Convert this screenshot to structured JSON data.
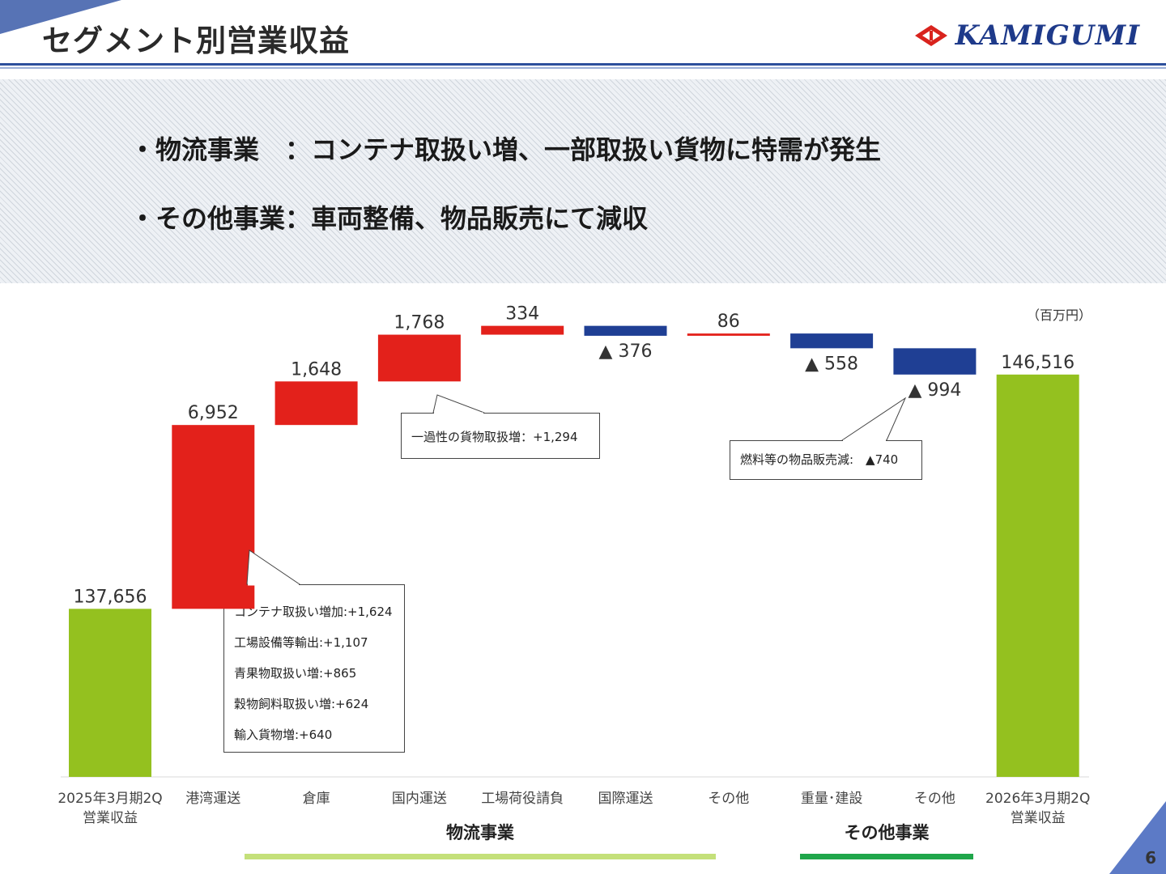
{
  "header": {
    "title": "セグメント別営業収益",
    "logo_text": "KAMIGUMI"
  },
  "bullets": [
    "・物流事業　：コンテナ取扱い増、一部取扱い貨物に特需が発生",
    "・その他事業：車両整備、物品販売にて減収"
  ],
  "unit_label": "（百万円）",
  "page_number": "6",
  "colors": {
    "total": "#94c11f",
    "increase": "#e3211b",
    "decrease": "#1f3f94",
    "logistics_bar": "#c4e07a",
    "other_bar": "#1fa64a",
    "header_rule": "#2d4f9c"
  },
  "chart_data": {
    "type": "bar",
    "subtype": "waterfall",
    "categories": [
      "2025年3月期2Q\n営業収益",
      "港湾運送",
      "倉庫",
      "国内運送",
      "工場荷役請負",
      "国際運送",
      "その他",
      "重量･建設",
      "その他",
      "2026年3月期2Q\n営業収益"
    ],
    "values": [
      137656,
      6952,
      1648,
      1768,
      334,
      -376,
      86,
      -558,
      -994,
      146516
    ],
    "kinds": [
      "total",
      "delta",
      "delta",
      "delta",
      "delta",
      "delta",
      "delta",
      "delta",
      "delta",
      "total"
    ],
    "value_labels": [
      "137,656",
      "6,952",
      "1,648",
      "1,768",
      "334",
      "▲ 376",
      "86",
      "▲ 558",
      "▲ 994",
      "146,516"
    ],
    "groups": [
      {
        "label": "物流事業",
        "from": 1,
        "to": 6
      },
      {
        "label": "その他事業",
        "from": 7,
        "to": 8
      }
    ],
    "annotations": [
      {
        "target": 1,
        "lines": [
          "コンテナ取扱い増加:+1,624",
          "工場設備等輸出:+1,107",
          "青果物取扱い増:+865",
          "穀物飼料取扱い増:+624",
          "輸入貨物増:+640"
        ]
      },
      {
        "target": 3,
        "lines": [
          "一過性の貨物取扱増：+1,294"
        ]
      },
      {
        "target": 8,
        "lines": [
          "燃料等の物品販売減:　▲740"
        ]
      }
    ],
    "unit": "（百万円）",
    "legend": "none",
    "grid": false
  }
}
